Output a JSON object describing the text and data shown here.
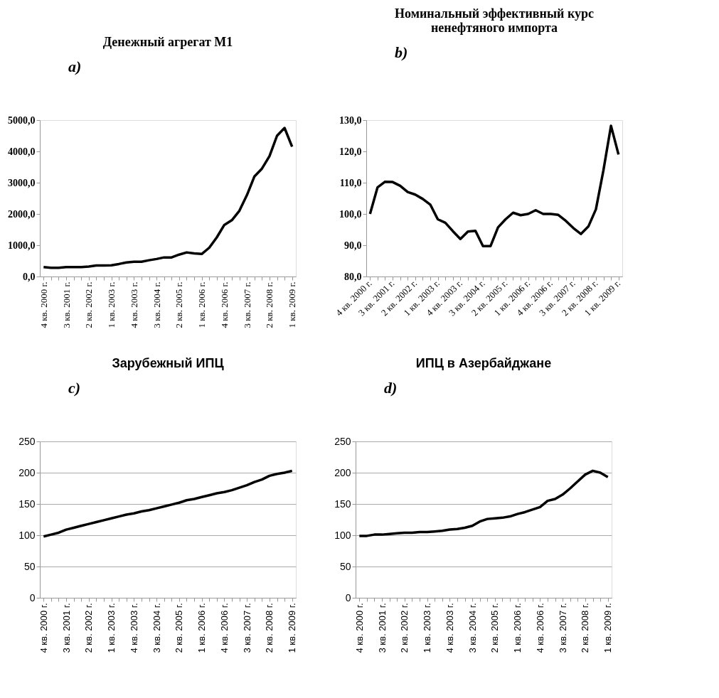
{
  "chart_data": [
    {
      "type": "line",
      "title": "Денежный агрегат М1",
      "annotations": [
        "a)"
      ],
      "categories": [
        "4 кв. 2000 г.",
        null,
        null,
        "3 кв. 2001 г.",
        null,
        null,
        "2 кв. 2002 г.",
        null,
        null,
        "1 кв. 2003 г.",
        null,
        null,
        "4 кв. 2003 г.",
        null,
        null,
        "3 кв. 2004 г.",
        null,
        null,
        "2 кв. 2005 г.",
        null,
        null,
        "1 кв. 2006 г.",
        null,
        null,
        "4 кв. 2006 г.",
        null,
        null,
        "3 кв. 2007 г.",
        null,
        null,
        "2 кв. 2008 г.",
        null,
        null,
        "1 кв. 2009 г."
      ],
      "series": [
        {
          "color": "#000000",
          "values": [
            300,
            280,
            280,
            300,
            300,
            300,
            320,
            350,
            350,
            360,
            400,
            450,
            470,
            470,
            520,
            560,
            610,
            610,
            700,
            770,
            740,
            720,
            920,
            1250,
            1650,
            1800,
            2100,
            2600,
            3200,
            3450,
            3850,
            4500,
            4750,
            4150
          ]
        }
      ],
      "ylim": [
        0,
        5000
      ],
      "yticks": [
        {
          "value": 0,
          "label": "0,0"
        },
        {
          "value": 1000,
          "label": "1000,0"
        },
        {
          "value": 2000,
          "label": "2000,0"
        },
        {
          "value": 3000,
          "label": "3000,0"
        },
        {
          "value": 4000,
          "label": "4000,0"
        },
        {
          "value": 5000,
          "label": "5000,0"
        }
      ],
      "grid": false
    },
    {
      "type": "line",
      "title": "Номинальный эффективный курс ненефтяного импорта",
      "annotations": [
        "b)"
      ],
      "categories": [
        "4 кв. 2000 г.",
        null,
        null,
        "3 кв. 2001 г.",
        null,
        null,
        "2 кв. 2002 г.",
        null,
        null,
        "1 кв. 2003 г.",
        null,
        null,
        "4 кв. 2003 г.",
        null,
        null,
        "3 кв. 2004 г.",
        null,
        null,
        "2 кв. 2005 г.",
        null,
        null,
        "1 кв. 2006 г.",
        null,
        null,
        "4 кв. 2006 г.",
        null,
        null,
        "3 кв. 2007 г.",
        null,
        null,
        "2 кв. 2008 г.",
        null,
        null,
        "1 кв. 2009 г."
      ],
      "series": [
        {
          "color": "#000000",
          "values": [
            100,
            108.5,
            110.3,
            110.2,
            109,
            107,
            106.2,
            104.8,
            103,
            98.3,
            97.2,
            94.5,
            92,
            94.4,
            94.6,
            89.7,
            89.7,
            95.7,
            98.3,
            100.4,
            99.6,
            100,
            101.2,
            100,
            100,
            99.7,
            97.8,
            95.5,
            93.6,
            96,
            101.5,
            114,
            128.2,
            119
          ]
        }
      ],
      "ylim": [
        80,
        130
      ],
      "yticks": [
        {
          "value": 80,
          "label": "80,0"
        },
        {
          "value": 90,
          "label": "90,0"
        },
        {
          "value": 100,
          "label": "100,0"
        },
        {
          "value": 110,
          "label": "110,0"
        },
        {
          "value": 120,
          "label": "120,0"
        },
        {
          "value": 130,
          "label": "130,0"
        }
      ],
      "grid": false
    },
    {
      "type": "line",
      "title": "Зарубежный ИПЦ",
      "annotations": [
        "c)"
      ],
      "categories": [
        "4 кв. 2000 г.",
        null,
        null,
        "3 кв. 2001 г.",
        null,
        null,
        "2 кв. 2002 г.",
        null,
        null,
        "1 кв. 2003 г.",
        null,
        null,
        "4 кв. 2003 г.",
        null,
        null,
        "3 кв. 2004 г.",
        null,
        null,
        "2 кв. 2005 г.",
        null,
        null,
        "1 кв. 2006 г.",
        null,
        null,
        "4 кв. 2006 г.",
        null,
        null,
        "3 кв. 2007 г.",
        null,
        null,
        "2 кв. 2008 г.",
        null,
        null,
        "1 кв. 2009 г."
      ],
      "series": [
        {
          "color": "#000000",
          "values": [
            98,
            101,
            104,
            109,
            112,
            115,
            118,
            121,
            124,
            127,
            130,
            133,
            135,
            138,
            140,
            143,
            146,
            149,
            152,
            156,
            158,
            161,
            164,
            167,
            169,
            172,
            176,
            180,
            185,
            189,
            195,
            198,
            200,
            203
          ]
        }
      ],
      "ylim": [
        0,
        250
      ],
      "yticks": [
        0,
        50,
        100,
        150,
        200,
        250
      ],
      "grid": "y"
    },
    {
      "type": "line",
      "title": "ИПЦ в Азербайджане",
      "annotations": [
        "d)"
      ],
      "categories": [
        "4 кв. 2000 г.",
        null,
        null,
        "3 кв. 2001 г.",
        null,
        null,
        "2 кв. 2002 г.",
        null,
        null,
        "1 кв. 2003 г.",
        null,
        null,
        "4 кв. 2003 г.",
        null,
        null,
        "3 кв. 2004 г.",
        null,
        null,
        "2 кв. 2005 г.",
        null,
        null,
        "1 кв. 2006 г.",
        null,
        null,
        "4 кв. 2006 г.",
        null,
        null,
        "3 кв. 2007 г.",
        null,
        null,
        "2 кв. 2008 г.",
        null,
        null,
        "1 кв. 2009 г."
      ],
      "series": [
        {
          "color": "#000000",
          "values": [
            99,
            99,
            101,
            101,
            102,
            103,
            104,
            104,
            105,
            105,
            106,
            107,
            109,
            110,
            112,
            115,
            122,
            126,
            127,
            128,
            130,
            134,
            137,
            141,
            145,
            155,
            158,
            165,
            175,
            186,
            197,
            203,
            200,
            193
          ]
        }
      ],
      "ylim": [
        0,
        250
      ],
      "yticks": [
        0,
        50,
        100,
        150,
        200,
        250
      ],
      "grid": "y"
    }
  ]
}
